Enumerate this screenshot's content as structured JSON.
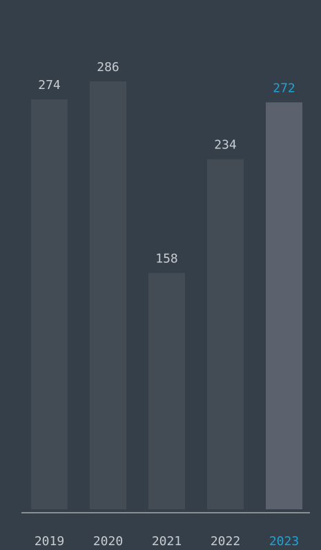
{
  "chart_data": {
    "type": "bar",
    "categories": [
      "2019",
      "2020",
      "2021",
      "2022",
      "2023"
    ],
    "values": [
      274,
      286,
      158,
      234,
      272
    ],
    "colors": [
      "#434b55",
      "#434b55",
      "#434b55",
      "#434b55",
      "#5c626d"
    ],
    "label_colors": [
      "#c9cdd1",
      "#c9cdd1",
      "#c9cdd1",
      "#c9cdd1",
      "#1fa3d6"
    ]
  }
}
